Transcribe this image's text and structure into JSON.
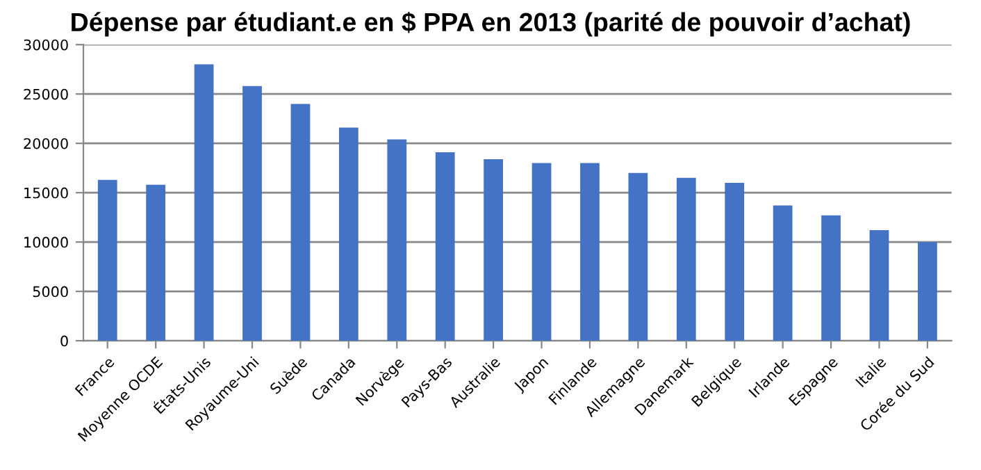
{
  "chart_data": {
    "type": "bar",
    "title": "Dépense par étudiant.e en $ PPA en 2013 (parité de pouvoir d’achat)",
    "categories": [
      "France",
      "Moyenne OCDE",
      "États-Unis",
      "Royaume-Uni",
      "Suède",
      "Canada",
      "Norvège",
      "Pays-Bas",
      "Australie",
      "Japon",
      "Finlande",
      "Allemagne",
      "Danemark",
      "Belgique",
      "Irlande",
      "Espagne",
      "Italie",
      "Corée du Sud"
    ],
    "values": [
      16300,
      15800,
      28000,
      25800,
      24000,
      21600,
      20400,
      19100,
      18400,
      18000,
      18000,
      17000,
      16500,
      16000,
      13700,
      12700,
      11200,
      10000
    ],
    "color": "#4472c4",
    "ylim": [
      0,
      30000
    ],
    "yticks": [
      0,
      5000,
      10000,
      15000,
      20000,
      25000,
      30000
    ],
    "grid": "y",
    "legend": false
  }
}
